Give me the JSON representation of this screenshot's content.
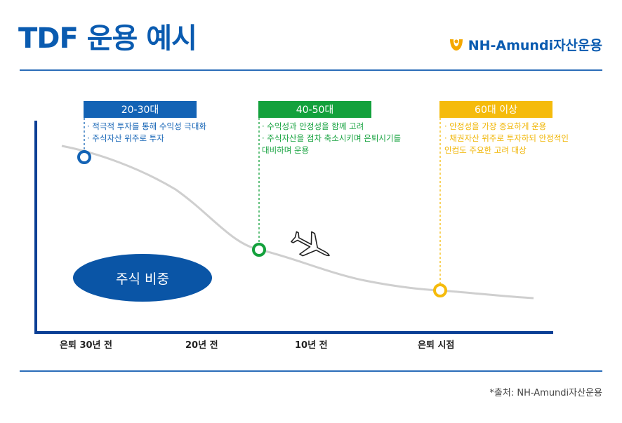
{
  "header": {
    "title": "TDF 운용 예시",
    "logo_text": "NH-Amundi자산운용"
  },
  "stages": [
    {
      "label": "20-30대",
      "color": "#1363b5",
      "notes": [
        "· 적극적 투자를 통해 수익성 극대화",
        "· 주식자산 위주로 투자"
      ]
    },
    {
      "label": "40-50대",
      "color": "#13a13c",
      "notes": [
        "· 수익성과 안정성을 함께 고려",
        "· 주식자산을 점차 축소시키며 은퇴시기를",
        "대비하며 운용"
      ]
    },
    {
      "label": "60대 이상",
      "color": "#f5bb0c",
      "notes": [
        "· 안정성을 가장 중요하게 운용",
        "· 채권자산 위주로 투자하되 안정적인",
        "인컴도 주요한 고려 대상"
      ]
    }
  ],
  "x_labels": [
    "은퇴 30년 전",
    "20년 전",
    "10년 전",
    "은퇴 시점"
  ],
  "ellipse_label": "주식 비중",
  "icons": {
    "logo": "nh-logo-icon",
    "plane": "airplane-icon"
  },
  "colors": {
    "brand": "#0a5bb0",
    "axis": "#0b3f95",
    "ellipse": "#0a55a6",
    "curve": "#cfcfcf"
  },
  "footer": {
    "source": "*출처: NH-Amundi자산운용"
  }
}
